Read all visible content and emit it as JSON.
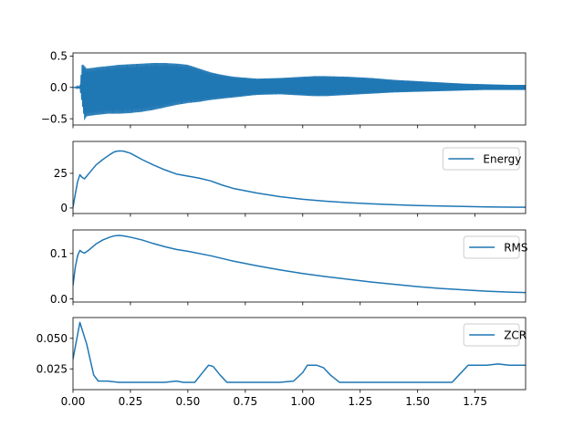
{
  "chart_data": [
    {
      "type": "line",
      "title": "",
      "xlabel": "",
      "ylabel": "",
      "xlim": [
        0,
        1.97
      ],
      "ylim": [
        -0.6,
        0.55
      ],
      "yticks": [
        {
          "value": 0.5,
          "label": "0.5"
        },
        {
          "value": 0.0,
          "label": "0.0"
        },
        {
          "value": -0.5,
          "label": "−0.5"
        }
      ],
      "legend": null,
      "color": "#1f77b4",
      "envelope_upper": {
        "x": [
          0.0,
          0.03,
          0.04,
          0.06,
          0.1,
          0.15,
          0.2,
          0.25,
          0.3,
          0.35,
          0.4,
          0.45,
          0.5,
          0.55,
          0.6,
          0.65,
          0.7,
          0.8,
          0.9,
          1.0,
          1.05,
          1.1,
          1.2,
          1.3,
          1.4,
          1.5,
          1.6,
          1.7,
          1.8,
          1.9,
          1.97
        ],
        "y": [
          0.0,
          0.02,
          0.38,
          0.3,
          0.32,
          0.34,
          0.36,
          0.37,
          0.38,
          0.39,
          0.39,
          0.38,
          0.36,
          0.3,
          0.24,
          0.2,
          0.17,
          0.14,
          0.15,
          0.17,
          0.18,
          0.18,
          0.17,
          0.15,
          0.12,
          0.1,
          0.08,
          0.06,
          0.05,
          0.04,
          0.04
        ]
      },
      "envelope_lower": {
        "x": [
          0.0,
          0.03,
          0.05,
          0.06,
          0.1,
          0.15,
          0.2,
          0.25,
          0.3,
          0.35,
          0.4,
          0.45,
          0.5,
          0.55,
          0.6,
          0.65,
          0.7,
          0.8,
          0.9,
          1.0,
          1.05,
          1.1,
          1.2,
          1.3,
          1.4,
          1.5,
          1.6,
          1.7,
          1.8,
          1.9,
          1.97
        ],
        "y": [
          0.0,
          -0.02,
          -0.52,
          -0.46,
          -0.44,
          -0.42,
          -0.42,
          -0.41,
          -0.39,
          -0.36,
          -0.32,
          -0.28,
          -0.25,
          -0.23,
          -0.2,
          -0.18,
          -0.16,
          -0.12,
          -0.11,
          -0.13,
          -0.14,
          -0.14,
          -0.12,
          -0.1,
          -0.08,
          -0.07,
          -0.06,
          -0.05,
          -0.04,
          -0.04,
          -0.04
        ]
      }
    },
    {
      "type": "line",
      "title": "",
      "xlabel": "",
      "ylabel": "",
      "xlim": [
        0,
        1.97
      ],
      "ylim": [
        -4,
        48
      ],
      "yticks": [
        {
          "value": 25,
          "label": "25"
        },
        {
          "value": 0,
          "label": "0"
        }
      ],
      "legend": "upper right",
      "series": [
        {
          "name": "Energy",
          "color": "#1f77b4",
          "x": [
            0.0,
            0.01,
            0.02,
            0.03,
            0.04,
            0.05,
            0.07,
            0.1,
            0.13,
            0.16,
            0.18,
            0.2,
            0.22,
            0.25,
            0.3,
            0.35,
            0.4,
            0.45,
            0.5,
            0.55,
            0.6,
            0.65,
            0.7,
            0.8,
            0.9,
            1.0,
            1.1,
            1.2,
            1.3,
            1.4,
            1.5,
            1.6,
            1.7,
            1.8,
            1.9,
            1.97
          ],
          "y": [
            0.5,
            10,
            19,
            24,
            22,
            21,
            25,
            31,
            35,
            38.5,
            40.5,
            41.2,
            41,
            39.5,
            35,
            31,
            27.5,
            24.5,
            23,
            21.5,
            19.5,
            16.5,
            14,
            10.8,
            8.2,
            6.3,
            4.9,
            3.8,
            3.0,
            2.3,
            1.8,
            1.4,
            1.1,
            0.8,
            0.6,
            0.5
          ]
        }
      ]
    },
    {
      "type": "line",
      "title": "",
      "xlabel": "",
      "ylabel": "",
      "xlim": [
        0,
        1.97
      ],
      "ylim": [
        -0.007,
        0.152
      ],
      "yticks": [
        {
          "value": 0.1,
          "label": "0.1"
        },
        {
          "value": 0.0,
          "label": "0.0"
        }
      ],
      "legend": "upper right",
      "series": [
        {
          "name": "RMS",
          "color": "#1f77b4",
          "x": [
            0.0,
            0.01,
            0.02,
            0.03,
            0.04,
            0.05,
            0.07,
            0.1,
            0.13,
            0.16,
            0.18,
            0.2,
            0.22,
            0.25,
            0.3,
            0.35,
            0.4,
            0.45,
            0.5,
            0.6,
            0.7,
            0.8,
            0.9,
            1.0,
            1.1,
            1.2,
            1.3,
            1.4,
            1.5,
            1.6,
            1.7,
            1.8,
            1.9,
            1.97
          ],
          "y": [
            0.03,
            0.07,
            0.095,
            0.107,
            0.103,
            0.101,
            0.108,
            0.121,
            0.13,
            0.136,
            0.139,
            0.14,
            0.139,
            0.136,
            0.13,
            0.122,
            0.115,
            0.109,
            0.105,
            0.095,
            0.083,
            0.073,
            0.064,
            0.056,
            0.049,
            0.043,
            0.037,
            0.032,
            0.027,
            0.023,
            0.02,
            0.017,
            0.015,
            0.014
          ]
        }
      ]
    },
    {
      "type": "line",
      "title": "",
      "xlabel": "",
      "ylabel": "",
      "xlim": [
        0,
        1.97
      ],
      "ylim": [
        0.008,
        0.067
      ],
      "xticks": [
        {
          "value": 0.0,
          "label": "0.00"
        },
        {
          "value": 0.25,
          "label": "0.25"
        },
        {
          "value": 0.5,
          "label": "0.50"
        },
        {
          "value": 0.75,
          "label": "0.75"
        },
        {
          "value": 1.0,
          "label": "1.00"
        },
        {
          "value": 1.25,
          "label": "1.25"
        },
        {
          "value": 1.5,
          "label": "1.50"
        },
        {
          "value": 1.75,
          "label": "1.75"
        }
      ],
      "yticks": [
        {
          "value": 0.05,
          "label": "0.050"
        },
        {
          "value": 0.025,
          "label": "0.025"
        }
      ],
      "legend": "upper right",
      "series": [
        {
          "name": "ZCR",
          "color": "#1f77b4",
          "x": [
            0.0,
            0.03,
            0.06,
            0.09,
            0.11,
            0.15,
            0.2,
            0.3,
            0.4,
            0.45,
            0.48,
            0.53,
            0.56,
            0.59,
            0.61,
            0.64,
            0.67,
            0.8,
            0.9,
            0.96,
            1.0,
            1.02,
            1.06,
            1.09,
            1.12,
            1.16,
            1.25,
            1.4,
            1.5,
            1.6,
            1.65,
            1.68,
            1.72,
            1.8,
            1.85,
            1.9,
            1.97
          ],
          "y": [
            0.033,
            0.063,
            0.045,
            0.02,
            0.015,
            0.015,
            0.014,
            0.014,
            0.014,
            0.015,
            0.014,
            0.014,
            0.021,
            0.028,
            0.027,
            0.02,
            0.014,
            0.014,
            0.014,
            0.015,
            0.022,
            0.028,
            0.028,
            0.026,
            0.02,
            0.014,
            0.014,
            0.014,
            0.014,
            0.014,
            0.014,
            0.02,
            0.028,
            0.028,
            0.029,
            0.028,
            0.028
          ]
        }
      ]
    }
  ]
}
